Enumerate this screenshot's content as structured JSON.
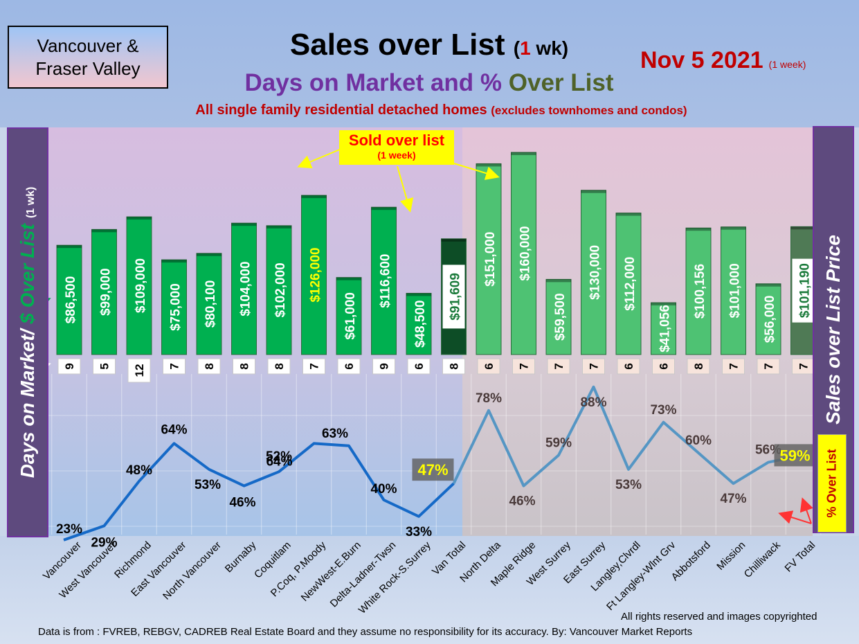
{
  "header": {
    "region_line1": "Vancouver &",
    "region_line2": "Fraser Valley",
    "title_main": "Sales over List",
    "title_paren_open": "(",
    "title_paren_num": "1",
    "title_paren_close": " wk)",
    "subtitle_part1": "Days on Market and %",
    "subtitle_part2": "Over List",
    "note_main": "All single family residential detached homes",
    "note_small": "(excludes townhomes and condos)",
    "date": "Nov 5  2021",
    "date_small": "(1 week)"
  },
  "left_axis": {
    "label_part1": "Days on Market/",
    "label_part2": "$ Over List",
    "label_small": "(1 wk)"
  },
  "right_axis": {
    "label": "Sales over List Price"
  },
  "callout": {
    "title": "Sold over list",
    "sub": "(1 week)"
  },
  "pct_legend": "% Over List",
  "footer": {
    "rights": "All rights reserved and  images copyrighted",
    "source": "Data is from : FVREB, REBGV, CADREB Real Estate Board and they assume no responsibility for its accuracy. By: Vancouver Market Reports"
  },
  "colors": {
    "van_bar": "#00b050",
    "fv_bar": "#4ec273",
    "van_total_bar": "#0d4d26",
    "fv_total_bar": "#4f7a55",
    "van_line": "#1569c7",
    "fv_line": "#5596c4"
  },
  "chart_data": {
    "type": "bar",
    "categories": [
      "Vancouver",
      "West Vancouver",
      "Richmond",
      "East Vancouver",
      "North Vancouver",
      "Burnaby",
      "Coquitlam",
      "P.Coq, P.Moody",
      "NewWest-E.Burn",
      "Delta-Ladner-Twsn",
      "White Rock-S.Surrey",
      "Van Total",
      "North Delta",
      "Maple Ridge",
      "West Surrey",
      "East Surrey",
      "Langley,Clvrdl",
      "Ft Langley-Wlnt Grv",
      "Abbotsford",
      "Mission",
      "Chilliwack",
      "FV Total"
    ],
    "series": [
      {
        "values": [
          86500,
          99000,
          109000,
          75000,
          80100,
          104000,
          102000,
          126000,
          61000,
          116600,
          48500,
          91609,
          151000,
          160000,
          59500,
          130000,
          112000,
          41056,
          100156,
          101000,
          56000,
          101190
        ],
        "labels": [
          "$86,500",
          "$99,000",
          "$109,000",
          "$75,000",
          "$80,100",
          "$104,000",
          "$102,000",
          "$126,000",
          "$61,000",
          "$116,600",
          "$48,500",
          "$91,609",
          "$151,000",
          "$160,000",
          "$59,500",
          "$130,000",
          "$112,000",
          "$41,056",
          "$100,156",
          "$101,000",
          "$56,000",
          "$101,190"
        ]
      },
      {
        "values": [
          9,
          5,
          12,
          7,
          8,
          8,
          8,
          7,
          6,
          9,
          6,
          8,
          6,
          7,
          7,
          7,
          6,
          6,
          8,
          7,
          7,
          7
        ]
      },
      {
        "values": [
          23,
          29,
          48,
          64,
          53,
          46,
          52,
          64,
          63,
          40,
          33,
          47,
          78,
          46,
          59,
          88,
          53,
          73,
          60,
          47,
          56,
          59
        ],
        "labels": [
          "23%",
          "29%",
          "48%",
          "64%",
          "53%",
          "46%",
          "52%",
          "64%",
          "63%",
          "40%",
          "33%",
          "47%",
          "78%",
          "46%",
          "59%",
          "88%",
          "53%",
          "73%",
          "60%",
          "47%",
          "56%",
          "59%"
        ]
      }
    ]
  }
}
